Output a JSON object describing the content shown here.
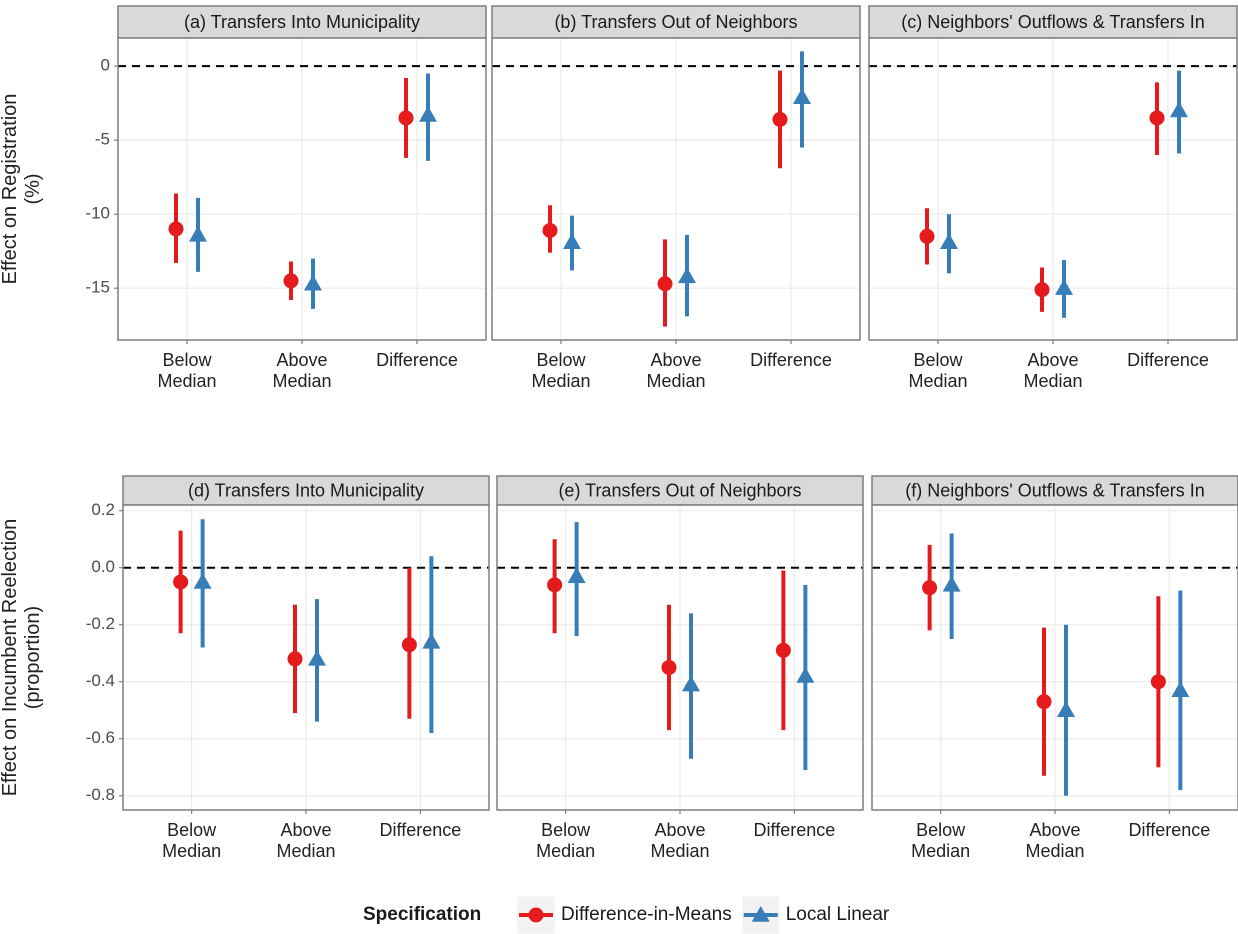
{
  "chart_data": {
    "type": "pointrange",
    "legend_title": "Specification",
    "legend_position": "bottom",
    "grid": true,
    "series": [
      {
        "name": "Difference-in-Means",
        "color": "#e41a1c",
        "marker": "circle"
      },
      {
        "name": "Local Linear",
        "color": "#377eb8",
        "marker": "triangle"
      }
    ],
    "rows": [
      {
        "ylabel": [
          "Effect on Registration",
          "(%)"
        ],
        "ylim": [
          -18.5,
          1.9
        ],
        "yticks": [
          -15,
          -10,
          -5,
          0
        ],
        "hline": 0,
        "panels": [
          {
            "title": "(a) Transfers Into Municipality",
            "categories": [
              "Below Median",
              "Above Median",
              "Difference"
            ],
            "series": [
              {
                "values": [
                  -11.0,
                  -14.5,
                  -3.5
                ],
                "lower": [
                  -13.3,
                  -15.8,
                  -6.2
                ],
                "upper": [
                  -8.6,
                  -13.2,
                  -0.8
                ]
              },
              {
                "values": [
                  -11.4,
                  -14.7,
                  -3.3
                ],
                "lower": [
                  -13.9,
                  -16.4,
                  -6.4
                ],
                "upper": [
                  -8.9,
                  -13.0,
                  -0.5
                ]
              }
            ]
          },
          {
            "title": "(b) Transfers Out of Neighbors",
            "categories": [
              "Below Median",
              "Above Median",
              "Difference"
            ],
            "series": [
              {
                "values": [
                  -11.1,
                  -14.7,
                  -3.6
                ],
                "lower": [
                  -12.6,
                  -17.6,
                  -6.9
                ],
                "upper": [
                  -9.4,
                  -11.7,
                  -0.3
                ]
              },
              {
                "values": [
                  -11.9,
                  -14.2,
                  -2.1
                ],
                "lower": [
                  -13.8,
                  -16.9,
                  -5.5
                ],
                "upper": [
                  -10.1,
                  -11.4,
                  1.0
                ]
              }
            ]
          },
          {
            "title": "(c) Neighbors' Outflows & Transfers In",
            "categories": [
              "Below Median",
              "Above Median",
              "Difference"
            ],
            "series": [
              {
                "values": [
                  -11.5,
                  -15.1,
                  -3.5
                ],
                "lower": [
                  -13.4,
                  -16.6,
                  -6.0
                ],
                "upper": [
                  -9.6,
                  -13.6,
                  -1.1
                ]
              },
              {
                "values": [
                  -11.9,
                  -15.0,
                  -3.0
                ],
                "lower": [
                  -14.0,
                  -17.0,
                  -5.9
                ],
                "upper": [
                  -10.0,
                  -13.1,
                  -0.3
                ]
              }
            ]
          }
        ]
      },
      {
        "ylabel": [
          "Effect on Incumbent Reelection",
          "(proportion)"
        ],
        "ylim": [
          -0.85,
          0.22
        ],
        "yticks": [
          -0.8,
          -0.6,
          -0.4,
          -0.2,
          {
            "value": 0,
            "label": "0.0"
          },
          0.2
        ],
        "hline": 0,
        "panels": [
          {
            "title": "(d) Transfers Into Municipality",
            "categories": [
              "Below Median",
              "Above Median",
              "Difference"
            ],
            "series": [
              {
                "values": [
                  -0.05,
                  -0.32,
                  -0.27
                ],
                "lower": [
                  -0.23,
                  -0.51,
                  -0.53
                ],
                "upper": [
                  0.13,
                  -0.13,
                  0.0
                ]
              },
              {
                "values": [
                  -0.05,
                  -0.32,
                  -0.26
                ],
                "lower": [
                  -0.28,
                  -0.54,
                  -0.58
                ],
                "upper": [
                  0.17,
                  -0.11,
                  0.04
                ]
              }
            ]
          },
          {
            "title": "(e) Transfers Out of Neighbors",
            "categories": [
              "Below Median",
              "Above Median",
              "Difference"
            ],
            "series": [
              {
                "values": [
                  -0.06,
                  -0.35,
                  -0.29
                ],
                "lower": [
                  -0.23,
                  -0.57,
                  -0.57
                ],
                "upper": [
                  0.1,
                  -0.13,
                  -0.01
                ]
              },
              {
                "values": [
                  -0.03,
                  -0.41,
                  -0.38
                ],
                "lower": [
                  -0.24,
                  -0.67,
                  -0.71
                ],
                "upper": [
                  0.16,
                  -0.16,
                  -0.06
                ]
              }
            ]
          },
          {
            "title": "(f) Neighbors' Outflows & Transfers In",
            "categories": [
              "Below Median",
              "Above Median",
              "Difference"
            ],
            "series": [
              {
                "values": [
                  -0.07,
                  -0.47,
                  -0.4
                ],
                "lower": [
                  -0.22,
                  -0.73,
                  -0.7
                ],
                "upper": [
                  0.08,
                  -0.21,
                  -0.1
                ]
              },
              {
                "values": [
                  -0.06,
                  -0.5,
                  -0.43
                ],
                "lower": [
                  -0.25,
                  -0.8,
                  -0.78
                ],
                "upper": [
                  0.12,
                  -0.2,
                  -0.08
                ]
              }
            ]
          }
        ]
      }
    ]
  }
}
